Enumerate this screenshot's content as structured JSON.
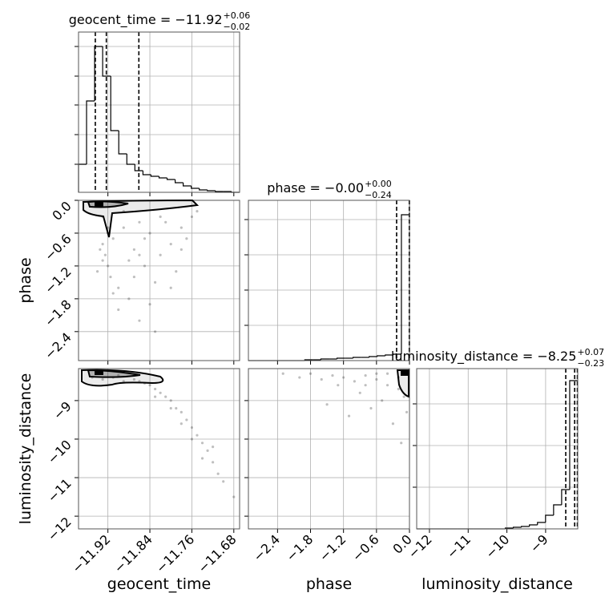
{
  "chart_data": {
    "type": "corner",
    "grid": true,
    "hist_color": "#000000",
    "point_color": "#000000",
    "parameters": [
      {
        "name": "geocent_time",
        "lim": [
          -11.976,
          -11.669
        ],
        "ticks": [
          {
            "value": -11.92,
            "label": "−11.92"
          },
          {
            "value": -11.84,
            "label": "−11.84"
          },
          {
            "value": -11.76,
            "label": "−11.76"
          },
          {
            "value": -11.68,
            "label": "−11.68"
          }
        ],
        "title": "geocent_time = −11.92",
        "title_sup": "+0.06",
        "title_sub": "−0.02",
        "bins": [
          -11.976,
          -11.9607,
          -11.9453,
          -11.93,
          -11.9146,
          -11.8993,
          -11.8839,
          -11.8686,
          -11.8532,
          -11.8379,
          -11.8225,
          -11.8072,
          -11.7918,
          -11.7765,
          -11.7611,
          -11.7458,
          -11.7304,
          -11.7151,
          -11.6997,
          -11.6844,
          -11.669
        ],
        "counts": [
          35,
          114,
          182,
          145,
          77,
          48,
          35,
          27,
          22,
          20,
          18,
          16,
          12,
          8,
          5,
          3,
          2,
          1,
          1,
          0
        ],
        "count_lim": [
          0,
          200
        ],
        "count_ticks": [
          35,
          72,
          109,
          145,
          182
        ],
        "quantiles": [
          -11.944,
          -11.923,
          -11.861
        ]
      },
      {
        "name": "phase",
        "lim": [
          -2.93,
          0.0
        ],
        "ticks": [
          {
            "value": -2.4,
            "label": "−2.4"
          },
          {
            "value": -1.8,
            "label": "−1.8"
          },
          {
            "value": -1.2,
            "label": "−1.2"
          },
          {
            "value": -0.6,
            "label": "−0.6"
          },
          {
            "value": 0,
            "label": "0.0"
          }
        ],
        "title": "phase = −0.00",
        "title_sup": "+0.00",
        "title_sub": "−0.24",
        "bins": [
          -2.93,
          -2.7835,
          -2.637,
          -2.4905,
          -2.344,
          -2.1975,
          -2.051,
          -1.9045,
          -1.758,
          -1.6115,
          -1.465,
          -1.3185,
          -1.172,
          -1.0255,
          -0.879,
          -0.7325,
          -0.586,
          -0.4395,
          -0.293,
          -0.1465,
          0
        ],
        "counts": [
          0,
          0,
          0,
          0,
          0,
          0,
          0,
          1,
          1,
          2,
          2,
          3,
          3,
          4,
          4,
          5,
          6,
          7,
          8,
          182
        ],
        "count_lim": [
          0,
          200
        ],
        "count_ticks": [
          44,
          88,
          132,
          176
        ],
        "quantiles": [
          -0.234,
          -0.004,
          0
        ]
      },
      {
        "name": "luminosity_distance",
        "lim": [
          -12.33,
          -8.17
        ],
        "ticks": [
          {
            "value": -12,
            "label": "−12"
          },
          {
            "value": -11,
            "label": "−11"
          },
          {
            "value": -10,
            "label": "−10"
          },
          {
            "value": -9,
            "label": "−9"
          }
        ],
        "title": "luminosity_distance = −8.25",
        "title_sup": "+0.07",
        "title_sub": "−0.23",
        "bins": [
          -12.33,
          -12.122,
          -11.914,
          -11.706,
          -11.498,
          -11.29,
          -11.082,
          -10.874,
          -10.666,
          -10.458,
          -10.25,
          -10.042,
          -9.834,
          -9.626,
          -9.418,
          -9.21,
          -9.002,
          -8.794,
          -8.586,
          -8.378,
          -8.17
        ],
        "counts": [
          0,
          0,
          0,
          0,
          0,
          0,
          0,
          0,
          0,
          0,
          0,
          1,
          2,
          3,
          5,
          8,
          17,
          30,
          49,
          185
        ],
        "count_lim": [
          0,
          200
        ],
        "count_ticks": [
          52,
          104,
          156
        ],
        "quantiles": [
          -8.48,
          -8.25,
          -8.18
        ]
      }
    ],
    "scatter": [
      {
        "x": [
          -11.93,
          -11.925,
          -11.92,
          -11.935,
          -11.915,
          -11.93,
          -11.91,
          -11.9,
          -11.92,
          -11.94,
          -11.89,
          -11.88,
          -11.87,
          -11.86,
          -11.85,
          -11.84,
          -11.83,
          -11.82,
          -11.81,
          -11.8,
          -11.79,
          -11.78,
          -11.77,
          -11.76,
          -11.75,
          -11.9,
          -11.88,
          -11.86,
          -11.84,
          -11.82,
          -11.8,
          -11.78,
          -11.91,
          -11.87,
          -11.85,
          -11.83,
          -11.93,
          -11.92,
          -11.89,
          -11.86
        ],
        "y": [
          -0.8,
          -1.0,
          -1.2,
          -0.9,
          -1.4,
          -1.1,
          -0.7,
          -1.6,
          -0.6,
          -1.3,
          -0.5,
          -1.8,
          -0.9,
          -2.2,
          -1.2,
          -0.6,
          -1.5,
          -1.0,
          -0.4,
          -0.8,
          -1.3,
          -0.5,
          -0.7,
          -0.3,
          -0.2,
          -2.0,
          -1.1,
          -0.4,
          -1.9,
          -0.3,
          -1.6,
          -0.9,
          -1.7,
          -1.4,
          -0.7,
          -2.4,
          -0.3,
          -0.5,
          -0.2,
          -1.0
        ]
      },
      {
        "x": [
          -11.95,
          -11.93,
          -11.91,
          -11.89,
          -11.87,
          -11.85,
          -11.84,
          -11.83,
          -11.82,
          -11.81,
          -11.8,
          -11.79,
          -11.78,
          -11.77,
          -11.76,
          -11.75,
          -11.74,
          -11.73,
          -11.72,
          -11.71,
          -11.7,
          -11.68,
          -11.9,
          -11.86,
          -11.83,
          -11.8,
          -11.78,
          -11.76,
          -11.74,
          -11.72
        ],
        "y": [
          -8.4,
          -8.45,
          -8.4,
          -8.5,
          -8.45,
          -8.55,
          -8.6,
          -8.7,
          -8.8,
          -8.9,
          -9.0,
          -9.2,
          -9.3,
          -9.5,
          -9.7,
          -9.9,
          -10.1,
          -10.3,
          -10.6,
          -10.9,
          -11.1,
          -11.5,
          -8.35,
          -8.5,
          -8.9,
          -9.2,
          -9.6,
          -10.0,
          -10.5,
          -10.2
        ]
      },
      {
        "x": [
          -2.3,
          -2.0,
          -1.8,
          -1.6,
          -1.4,
          -1.2,
          -1.0,
          -0.8,
          -0.6,
          -0.4,
          -0.2,
          -0.1,
          -1.5,
          -1.1,
          -0.9,
          -0.7,
          -0.5,
          -0.3,
          -0.15,
          -0.05,
          -1.3,
          -0.6,
          -0.2,
          -0.8,
          -0.4
        ],
        "y": [
          -8.3,
          -8.4,
          -8.3,
          -8.45,
          -8.35,
          -8.4,
          -8.5,
          -8.35,
          -8.45,
          -8.6,
          -8.7,
          -8.9,
          -9.1,
          -9.4,
          -8.8,
          -9.2,
          -9.0,
          -9.6,
          -10.1,
          -9.3,
          -8.6,
          -8.3,
          -8.4,
          -8.6,
          -8.3
        ]
      }
    ]
  }
}
